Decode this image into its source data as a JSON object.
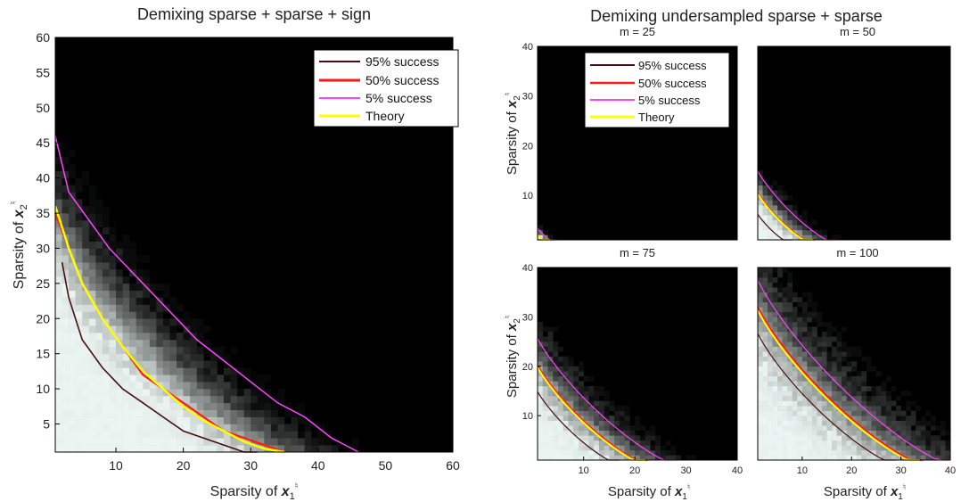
{
  "chart_data": [
    {
      "type": "heatmap",
      "panel": "left",
      "title": "Demixing sparse + sparse + sign",
      "xlabel": "Sparsity of x₁♮",
      "ylabel": "Sparsity of x₂♮",
      "xlim": [
        1,
        60
      ],
      "ylim": [
        1,
        60
      ],
      "xticks": [
        "10",
        "20",
        "30",
        "40",
        "50",
        "60"
      ],
      "yticks": [
        "5",
        "10",
        "15",
        "20",
        "25",
        "30",
        "35",
        "40",
        "45",
        "50",
        "55",
        "60"
      ],
      "legend": [
        "95% success",
        "50% success",
        "5% success",
        "Theory"
      ],
      "legend_position": "top-right",
      "series": [
        {
          "name": "95% success",
          "color": "#4a0d0d",
          "x": [
            2,
            3,
            5,
            8,
            11,
            14,
            17,
            20,
            23,
            26,
            29,
            31
          ],
          "y": [
            28,
            23,
            17,
            13,
            10,
            8,
            6,
            4,
            3,
            2,
            1,
            1
          ]
        },
        {
          "name": "50% success",
          "color": "#ff1a1a",
          "x": [
            1,
            3,
            5,
            8,
            11,
            14,
            17,
            20,
            23,
            26,
            29,
            32,
            35
          ],
          "y": [
            35,
            30,
            25,
            20,
            16,
            12,
            10,
            8,
            6,
            4,
            3,
            2,
            1
          ]
        },
        {
          "name": "5% success",
          "color": "#ff44ff",
          "x": [
            1,
            3,
            6,
            9,
            12,
            15,
            18,
            22,
            26,
            30,
            34,
            38,
            42,
            46
          ],
          "y": [
            46,
            38,
            34,
            30,
            27,
            24,
            21,
            17,
            14,
            11,
            8,
            6,
            3,
            1
          ]
        },
        {
          "name": "Theory",
          "color": "#ffff00",
          "x": [
            1,
            3,
            5,
            8,
            11,
            14,
            17,
            20,
            23,
            26,
            29,
            32,
            35
          ],
          "y": [
            36,
            30,
            25,
            20,
            16,
            12.5,
            10,
            7.5,
            5.5,
            4,
            2.5,
            1.5,
            1
          ]
        }
      ]
    },
    {
      "type": "heatmap",
      "panel": "right-group",
      "title": "Demixing undersampled sparse + sparse",
      "xlabel": "Sparsity of x₁♮",
      "ylabel": "Sparsity of x₂♮",
      "legend": [
        "95% success",
        "50% success",
        "5% success",
        "Theory"
      ],
      "legend_position": "top-left subplot",
      "subplots": [
        {
          "title": "m = 25",
          "xlim": [
            1,
            40
          ],
          "ylim": [
            1,
            40
          ],
          "xticks": [],
          "yticks": [
            "10",
            "20",
            "30",
            "40"
          ],
          "boundary5": 5,
          "boundary95": 2
        },
        {
          "title": "m = 50",
          "xlim": [
            1,
            40
          ],
          "ylim": [
            1,
            40
          ],
          "xticks": [],
          "yticks": [],
          "boundary5": 17,
          "boundary95": 8
        },
        {
          "title": "m = 75",
          "xlim": [
            1,
            40
          ],
          "ylim": [
            1,
            40
          ],
          "xticks": [
            "10",
            "20",
            "30",
            "40"
          ],
          "yticks": [
            "10",
            "20",
            "30",
            "40"
          ],
          "boundary5": 28,
          "boundary95": 17
        },
        {
          "title": "m = 100",
          "xlim": [
            1,
            40
          ],
          "ylim": [
            1,
            40
          ],
          "xticks": [
            "10",
            "20",
            "30",
            "40"
          ],
          "yticks": [],
          "boundary5": 40,
          "boundary95": 29
        }
      ]
    }
  ],
  "colors": {
    "dark": "#000000",
    "light": "#ffffff",
    "c95": "#4a0d0d",
    "c50": "#ff1a1a",
    "c5": "#ff44ff",
    "theory": "#ffff00"
  }
}
